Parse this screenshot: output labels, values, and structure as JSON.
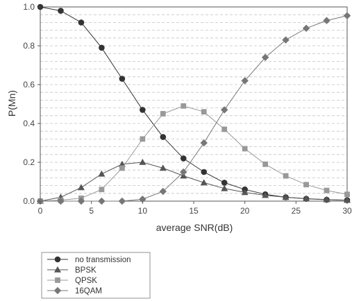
{
  "chart_data": {
    "type": "line",
    "title": "",
    "xlabel": "average SNR(dB)",
    "ylabel": "P(Mn)",
    "xlim": [
      0,
      30
    ],
    "ylim": [
      0,
      1.0
    ],
    "xticks": [
      0,
      5,
      10,
      15,
      20,
      25,
      30
    ],
    "yticks": [
      0.0,
      0.2,
      0.4,
      0.6,
      0.8,
      1.0
    ],
    "xtick_labels": [
      "0",
      "5",
      "10",
      "15",
      "20",
      "25",
      "30"
    ],
    "ytick_labels": [
      "0.0",
      "0.2",
      "0.4",
      "0.6",
      "0.8",
      "1.0"
    ],
    "grid": "horizontal dashed",
    "legend_position": "below plot, left",
    "x": [
      0,
      2,
      4,
      6,
      8,
      10,
      12,
      14,
      16,
      18,
      20,
      22,
      24,
      26,
      28,
      30
    ],
    "series": [
      {
        "name": "no transmission",
        "marker": "circle",
        "color": "#333333",
        "values": [
          1.0,
          0.98,
          0.92,
          0.79,
          0.63,
          0.47,
          0.33,
          0.22,
          0.15,
          0.095,
          0.06,
          0.035,
          0.02,
          0.012,
          0.007,
          0.005
        ]
      },
      {
        "name": "BPSK",
        "marker": "triangle",
        "color": "#555555",
        "values": [
          0.0,
          0.02,
          0.07,
          0.14,
          0.19,
          0.2,
          0.17,
          0.13,
          0.095,
          0.065,
          0.045,
          0.03,
          0.02,
          0.013,
          0.008,
          0.005
        ]
      },
      {
        "name": "QPSK",
        "marker": "square",
        "color": "#999999",
        "values": [
          0.0,
          0.005,
          0.015,
          0.06,
          0.17,
          0.32,
          0.45,
          0.49,
          0.46,
          0.37,
          0.27,
          0.19,
          0.13,
          0.085,
          0.055,
          0.035
        ]
      },
      {
        "name": "16QAM",
        "marker": "diamond",
        "color": "#777777",
        "values": [
          0.0,
          0.0,
          0.0,
          0.0,
          0.0,
          0.01,
          0.05,
          0.15,
          0.3,
          0.47,
          0.62,
          0.74,
          0.83,
          0.89,
          0.93,
          0.955
        ]
      }
    ]
  }
}
